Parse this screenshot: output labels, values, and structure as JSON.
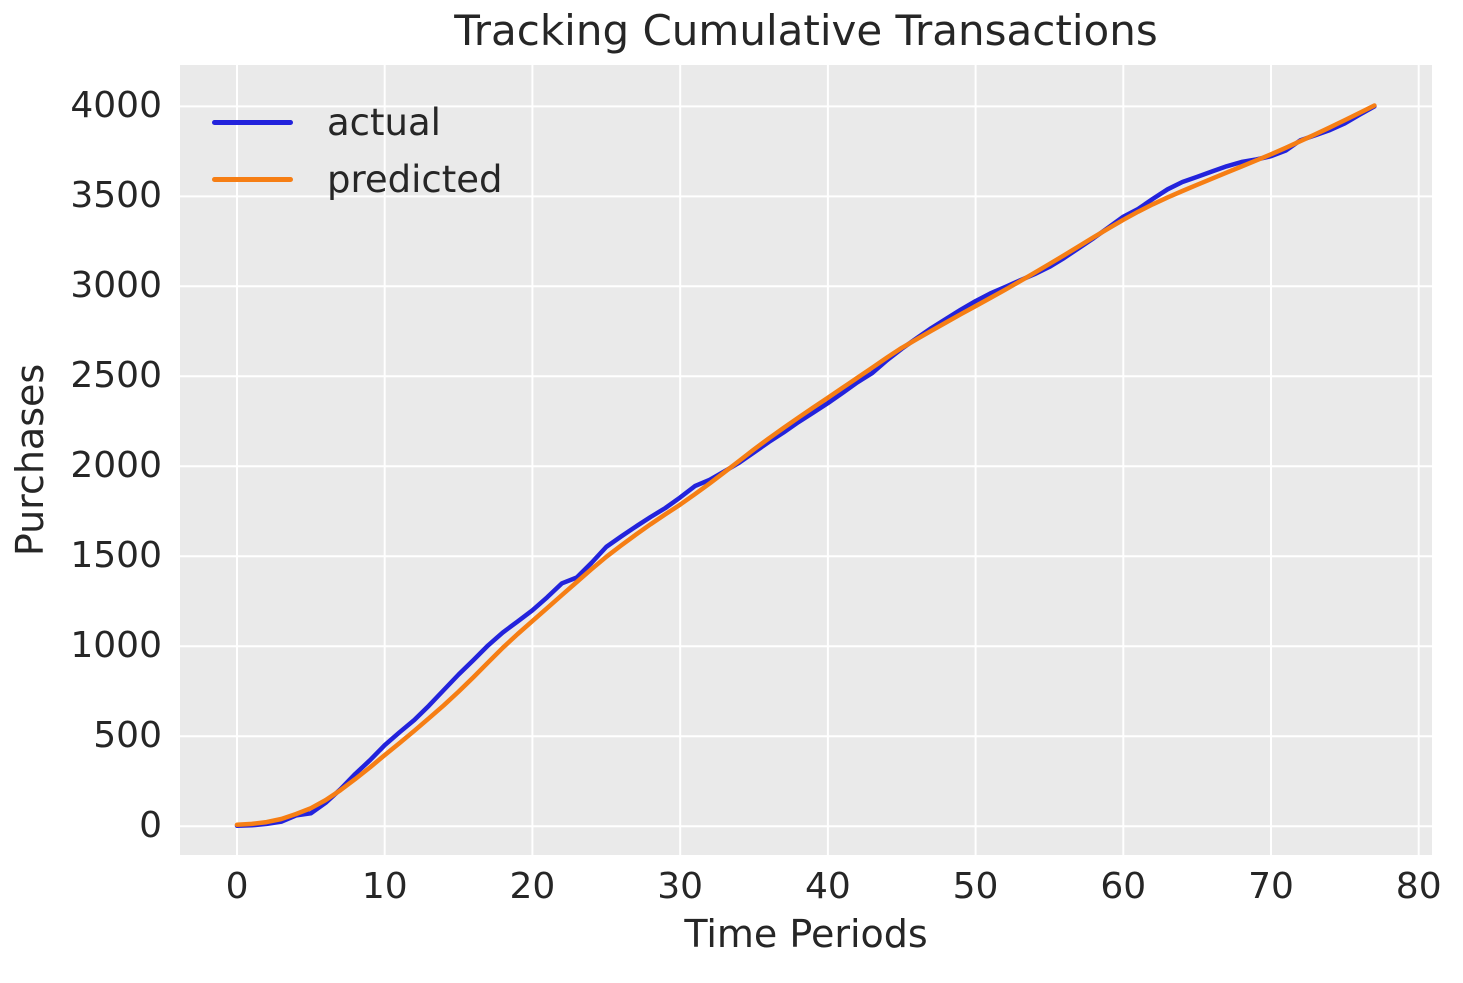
{
  "title": "Tracking Cumulative Transactions",
  "colors": {
    "axes_background": "#eaeaea",
    "figure_background": "#ffffff",
    "grid": "#ffffff",
    "text": "#262626",
    "actual_line": "#2323dc",
    "predicted_line": "#f67e14"
  },
  "chart_data": {
    "type": "line",
    "title": "Tracking Cumulative Transactions",
    "xlabel": "Time Periods",
    "ylabel": "Purchases",
    "grid": true,
    "legend_position": "upper left",
    "xlim": [
      -3.86,
      80.9
    ],
    "ylim": [
      -160,
      4230
    ],
    "xticks": [
      0,
      10,
      20,
      30,
      40,
      50,
      60,
      70,
      80
    ],
    "yticks": [
      0,
      500,
      1000,
      1500,
      2000,
      2500,
      3000,
      3500,
      4000
    ],
    "x": [
      0,
      1,
      2,
      3,
      4,
      5,
      6,
      7,
      8,
      9,
      10,
      11,
      12,
      13,
      14,
      15,
      16,
      17,
      18,
      19,
      20,
      21,
      22,
      23,
      24,
      25,
      26,
      27,
      28,
      29,
      30,
      31,
      32,
      33,
      34,
      35,
      36,
      37,
      38,
      39,
      40,
      41,
      42,
      43,
      44,
      45,
      46,
      47,
      48,
      49,
      50,
      51,
      52,
      53,
      54,
      55,
      56,
      57,
      58,
      59,
      60,
      61,
      62,
      63,
      64,
      65,
      66,
      67,
      68,
      69,
      70,
      71,
      72,
      73,
      74,
      75,
      76,
      77
    ],
    "series": [
      {
        "name": "actual",
        "color": "#2323dc",
        "values": [
          3,
          5,
          13,
          25,
          60,
          72,
          130,
          205,
          290,
          367,
          450,
          522,
          590,
          670,
          757,
          843,
          923,
          1005,
          1077,
          1138,
          1200,
          1272,
          1350,
          1382,
          1463,
          1552,
          1610,
          1665,
          1718,
          1768,
          1827,
          1890,
          1925,
          1972,
          2020,
          2077,
          2135,
          2188,
          2245,
          2298,
          2351,
          2408,
          2467,
          2518,
          2589,
          2653,
          2711,
          2768,
          2819,
          2870,
          2918,
          2960,
          2996,
          3033,
          3068,
          3108,
          3158,
          3213,
          3268,
          3327,
          3387,
          3430,
          3486,
          3539,
          3580,
          3608,
          3638,
          3667,
          3691,
          3705,
          3723,
          3755,
          3812,
          3840,
          3869,
          3906,
          3954,
          4000
        ]
      },
      {
        "name": "predicted",
        "color": "#f67e14",
        "values": [
          8,
          13,
          23,
          40,
          68,
          100,
          145,
          200,
          262,
          327,
          395,
          462,
          530,
          600,
          672,
          748,
          828,
          910,
          992,
          1068,
          1140,
          1212,
          1285,
          1357,
          1428,
          1497,
          1560,
          1620,
          1678,
          1733,
          1787,
          1845,
          1905,
          1967,
          2030,
          2094,
          2155,
          2213,
          2270,
          2326,
          2381,
          2436,
          2492,
          2548,
          2604,
          2658,
          2706,
          2753,
          2799,
          2845,
          2890,
          2935,
          2981,
          3028,
          3076,
          3124,
          3173,
          3223,
          3273,
          3322,
          3370,
          3415,
          3456,
          3494,
          3530,
          3564,
          3598,
          3632,
          3666,
          3700,
          3734,
          3770,
          3807,
          3845,
          3884,
          3924,
          3964,
          4005
        ]
      }
    ]
  }
}
